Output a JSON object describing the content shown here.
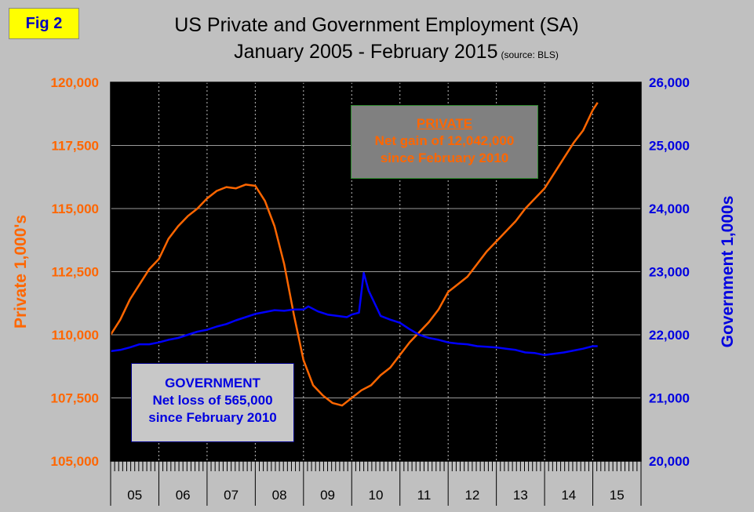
{
  "badge": "Fig 2",
  "title": {
    "line1": "US Private and Government Employment (SA)",
    "line2": "January 2005 - February 2015",
    "source": "(source: BLS)"
  },
  "colors": {
    "private": "#ff6600",
    "government": "#0000ff",
    "plot_bg": "#000000",
    "page_bg": "#c0c0c0"
  },
  "annotations": {
    "private": {
      "head": "PRIVATE",
      "line2": "Net gain of 12,042,000",
      "line3": "since February 2010"
    },
    "government": {
      "head": "GOVERNMENT",
      "line2": "Net loss of 565,000",
      "line3": "since February 2010"
    }
  },
  "chart_data": {
    "type": "line",
    "title": "US Private and Government Employment (SA) January 2005 - February 2015",
    "ylabel_left": "Private 1,000's",
    "ylabel_right": "Government 1,000s",
    "ylim_left": [
      105000,
      120000
    ],
    "ylim_right": [
      20000,
      26000
    ],
    "yticks_left": [
      "105,000",
      "107,500",
      "110,000",
      "112,500",
      "115,000",
      "117,500",
      "120,000"
    ],
    "yticks_right": [
      "20,000",
      "21,000",
      "22,000",
      "23,000",
      "24,000",
      "25,000",
      "26,000"
    ],
    "xlim": [
      2005.0,
      2016.0
    ],
    "xtick_labels": [
      "05",
      "06",
      "07",
      "08",
      "09",
      "10",
      "11",
      "12",
      "13",
      "14",
      "15"
    ],
    "grid": "vertical dashed at year boundaries, horizontal solid",
    "series": [
      {
        "name": "Private",
        "axis": "left",
        "x": [
          2005.0,
          2005.2,
          2005.4,
          2005.6,
          2005.8,
          2006.0,
          2006.2,
          2006.4,
          2006.6,
          2006.8,
          2007.0,
          2007.2,
          2007.4,
          2007.6,
          2007.8,
          2008.0,
          2008.2,
          2008.4,
          2008.6,
          2008.8,
          2009.0,
          2009.2,
          2009.4,
          2009.6,
          2009.8,
          2010.0,
          2010.2,
          2010.4,
          2010.6,
          2010.8,
          2011.0,
          2011.2,
          2011.4,
          2011.6,
          2011.8,
          2012.0,
          2012.2,
          2012.4,
          2012.6,
          2012.8,
          2013.0,
          2013.2,
          2013.4,
          2013.6,
          2013.8,
          2014.0,
          2014.2,
          2014.4,
          2014.6,
          2014.8,
          2015.0,
          2015.1
        ],
        "values": [
          110000,
          110600,
          111400,
          112000,
          112600,
          113000,
          113800,
          114300,
          114700,
          115000,
          115400,
          115700,
          115850,
          115800,
          115950,
          115900,
          115300,
          114300,
          112800,
          110800,
          109000,
          108000,
          107600,
          107300,
          107200,
          107500,
          107800,
          108000,
          108400,
          108700,
          109200,
          109700,
          110100,
          110500,
          111000,
          111700,
          112000,
          112300,
          112800,
          113300,
          113700,
          114100,
          114500,
          115000,
          115400,
          115800,
          116400,
          117000,
          117600,
          118100,
          118900,
          119200
        ]
      },
      {
        "name": "Government",
        "axis": "right",
        "x": [
          2005.0,
          2005.2,
          2005.4,
          2005.6,
          2005.8,
          2006.0,
          2006.2,
          2006.4,
          2006.6,
          2006.8,
          2007.0,
          2007.2,
          2007.4,
          2007.6,
          2007.8,
          2008.0,
          2008.2,
          2008.4,
          2008.6,
          2008.8,
          2009.0,
          2009.1,
          2009.3,
          2009.5,
          2009.7,
          2009.9,
          2010.0,
          2010.15,
          2010.25,
          2010.35,
          2010.5,
          2010.6,
          2010.8,
          2011.0,
          2011.2,
          2011.4,
          2011.6,
          2011.8,
          2012.0,
          2012.2,
          2012.4,
          2012.6,
          2012.8,
          2013.0,
          2013.2,
          2013.4,
          2013.6,
          2013.8,
          2014.0,
          2014.2,
          2014.4,
          2014.6,
          2014.8,
          2015.0,
          2015.1
        ],
        "values": [
          21740,
          21760,
          21800,
          21850,
          21850,
          21880,
          21920,
          21950,
          22000,
          22050,
          22080,
          22130,
          22170,
          22230,
          22280,
          22330,
          22360,
          22390,
          22380,
          22400,
          22400,
          22450,
          22370,
          22320,
          22300,
          22280,
          22320,
          22350,
          22980,
          22700,
          22460,
          22300,
          22240,
          22190,
          22090,
          22000,
          21950,
          21920,
          21880,
          21860,
          21850,
          21820,
          21810,
          21800,
          21780,
          21760,
          21720,
          21710,
          21680,
          21700,
          21720,
          21750,
          21780,
          21820,
          21820
        ]
      }
    ]
  }
}
